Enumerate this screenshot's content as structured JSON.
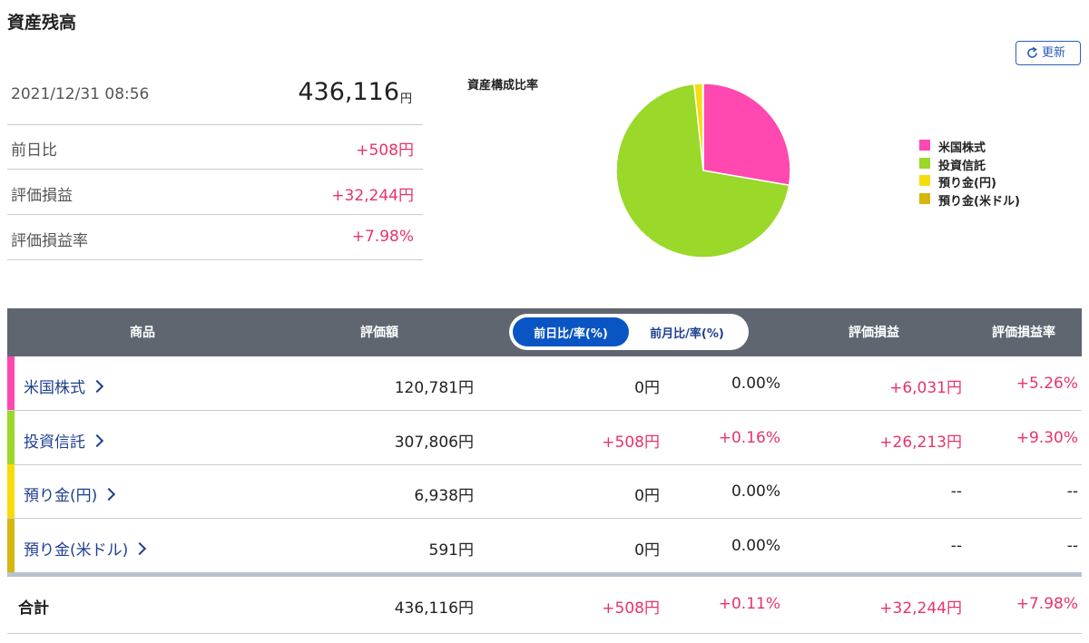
{
  "header": {
    "title": "資産残高",
    "refresh": "更新"
  },
  "summary": {
    "datetime": "2021/12/31 08:56",
    "total": "436,116",
    "total_unit": "円",
    "rows": [
      [
        "前日比",
        "+508円"
      ],
      [
        "評価損益",
        "+32,244円"
      ],
      [
        "評価損益率",
        "+7.98%"
      ]
    ]
  },
  "chart_data": {
    "type": "pie",
    "title": "資産構成比率",
    "categories": [
      "米国株式",
      "投資信託",
      "預り金(円)",
      "預り金(米ドル)"
    ],
    "values": [
      27.7,
      70.6,
      1.6,
      0.1
    ],
    "colors": [
      "#ff48b0",
      "#9ad829",
      "#f7dc0d",
      "#d4b60e"
    ]
  },
  "table": {
    "headers": [
      "商品",
      "評価額",
      "評価損益",
      "評価損益率"
    ],
    "toggle": [
      "前日比/率(%)",
      "前月比/率(%)"
    ],
    "rows": [
      {
        "name": "米国株式",
        "color": "#ff48b0",
        "cells": [
          "120,781円",
          "0円",
          "0.00%",
          "+6,031円",
          "+5.26%"
        ]
      },
      {
        "name": "投資信託",
        "color": "#9ad829",
        "cells": [
          "307,806円",
          "+508円",
          "+0.16%",
          "+26,213円",
          "+9.30%"
        ]
      },
      {
        "name": "預り金(円)",
        "color": "#f7dc0d",
        "cells": [
          "6,938円",
          "0円",
          "0.00%",
          "--",
          "--"
        ]
      },
      {
        "name": "預り金(米ドル)",
        "color": "#d4b60e",
        "cells": [
          "591円",
          "0円",
          "0.00%",
          "--",
          "--"
        ]
      }
    ],
    "total": {
      "label": "合計",
      "cells": [
        "436,116円",
        "+508円",
        "+0.11%",
        "+32,244円",
        "+7.98%"
      ]
    }
  }
}
